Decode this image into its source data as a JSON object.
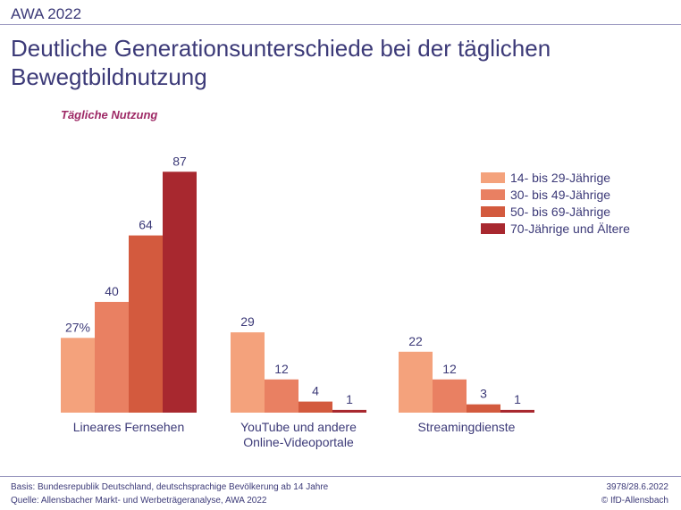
{
  "header": {
    "label": "AWA 2022"
  },
  "title_line1": "Deutliche Generationsunterschiede bei der täglichen",
  "title_line2": "Bewegtbildnutzung",
  "subtitle": "Tägliche Nutzung",
  "chart_data": {
    "type": "bar",
    "categories": [
      [
        "Lineares Fernsehen"
      ],
      [
        "YouTube und andere",
        "Online-Videoportale"
      ],
      [
        "Streamingdienste"
      ]
    ],
    "series": [
      {
        "name": "14- bis 29-Jährige",
        "color": "#f4a27c",
        "values": [
          27,
          29,
          22
        ],
        "labels": [
          "27%",
          "29",
          "22"
        ]
      },
      {
        "name": "30- bis 49-Jährige",
        "color": "#e98062",
        "values": [
          40,
          12,
          12
        ],
        "labels": [
          "40",
          "12",
          "12"
        ]
      },
      {
        "name": "50- bis 69-Jährige",
        "color": "#d35a3e",
        "values": [
          64,
          4,
          3
        ],
        "labels": [
          "64",
          "4",
          "3"
        ]
      },
      {
        "name": "70-Jährige und Ältere",
        "color": "#a8282f",
        "values": [
          87,
          1,
          1
        ],
        "labels": [
          "87",
          "1",
          "1"
        ]
      }
    ],
    "ylim": [
      0,
      100
    ],
    "legend_position": "top-right",
    "grid": false
  },
  "footer": {
    "basis": "Basis: Bundesrepublik Deutschland, deutschsprachige Bevölkerung ab 14 Jahre",
    "source": "Quelle: Allensbacher Markt- und Werbeträgeranalyse, AWA 2022",
    "date": "3978/28.6.2022",
    "copyright": "© IfD-Allensbach"
  }
}
